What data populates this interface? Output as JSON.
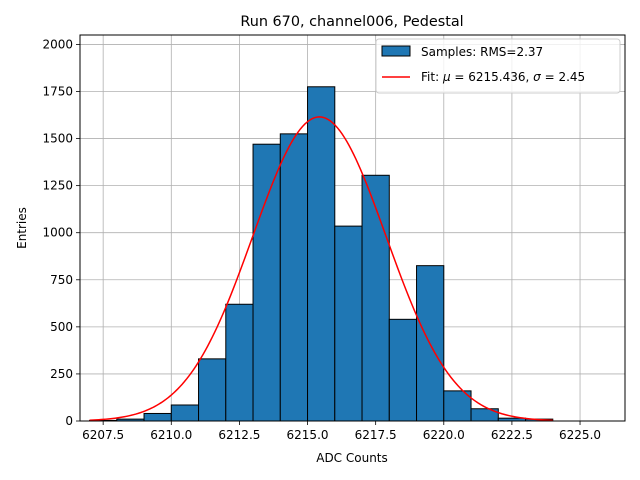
{
  "chart_data": {
    "type": "bar",
    "title": "Run 670, channel006, Pedestal",
    "xlabel": "ADC Counts",
    "ylabel": "Entries",
    "xlim": [
      6206.65,
      6226.65
    ],
    "ylim": [
      0,
      2050
    ],
    "grid": true,
    "legend_placement": "top-right",
    "x_ticks": [
      6207.5,
      6210.0,
      6212.5,
      6215.0,
      6217.5,
      6220.0,
      6222.5,
      6225.0
    ],
    "x_tick_labels": [
      "6207.5",
      "6210.0",
      "6212.5",
      "6215.0",
      "6217.5",
      "6220.0",
      "6222.5",
      "6225.0"
    ],
    "y_ticks": [
      0,
      250,
      500,
      750,
      1000,
      1250,
      1500,
      1750,
      2000
    ],
    "y_tick_labels": [
      "0",
      "250",
      "500",
      "750",
      "1000",
      "1250",
      "1500",
      "1750",
      "2000"
    ],
    "histogram": {
      "legend_label": "Samples: RMS=2.37",
      "color": "#1f77b4",
      "edge_color": "#000000",
      "bin_edges": [
        6207.0,
        6208.0,
        6209.0,
        6210.0,
        6211.0,
        6212.0,
        6213.0,
        6214.0,
        6215.0,
        6216.0,
        6217.0,
        6218.0,
        6219.0,
        6220.0,
        6221.0,
        6222.0,
        6223.0,
        6224.0
      ],
      "counts": [
        3,
        10,
        40,
        85,
        330,
        620,
        1470,
        1525,
        1775,
        1035,
        1305,
        540,
        825,
        160,
        65,
        15,
        10
      ]
    },
    "fit": {
      "legend_label_prefix": "Fit: ",
      "legend_label_rest": " = 6215.436, ",
      "legend_label_sigma_rest": " = 2.45",
      "mu_symbol": "μ",
      "sigma_symbol": "σ",
      "mu": 6215.436,
      "sigma": 2.45,
      "amplitude": 1615,
      "x_range": [
        6207.0,
        6224.0
      ],
      "color": "#ff0000"
    }
  }
}
